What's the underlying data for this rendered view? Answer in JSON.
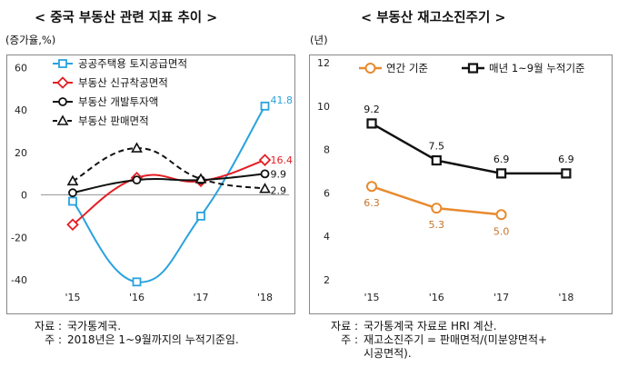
{
  "chart_data": [
    {
      "type": "line",
      "title": "< 중국 부동산 관련 지표 추이 >",
      "ylabel": "(증가율,%)",
      "categories": [
        "'15",
        "'16",
        "'17",
        "'18"
      ],
      "ylim": [
        -50,
        60
      ],
      "yticks": [
        "60",
        "40",
        "20",
        "0",
        "-20",
        "-40"
      ],
      "ytick_values": [
        60,
        40,
        20,
        0,
        -20,
        -40
      ],
      "grid": false,
      "legend_position": "top-left",
      "series": [
        {
          "name": "공공주택용 토지공급면적",
          "values": [
            -3,
            -41,
            -10,
            41.8
          ],
          "color": "#29a3dd",
          "marker": "square",
          "dashed": false,
          "last_label": "41.8"
        },
        {
          "name": "부동산 신규착공면적",
          "values": [
            -14,
            8,
            6.5,
            16.4
          ],
          "color": "#e31e24",
          "marker": "diamond",
          "dashed": false,
          "last_label": "16.4"
        },
        {
          "name": "부동산 개발투자액",
          "values": [
            1,
            7,
            7,
            9.9
          ],
          "color": "#111111",
          "marker": "circle",
          "dashed": false,
          "last_label": "9.9"
        },
        {
          "name": "부동산 판매면적",
          "values": [
            6.5,
            22,
            7.5,
            2.9
          ],
          "color": "#111111",
          "marker": "triangle",
          "dashed": true,
          "last_label": "2.9"
        }
      ]
    },
    {
      "type": "line",
      "title": "< 부동산 재고소진주기 >",
      "ylabel": "(년)",
      "categories": [
        "'15",
        "'16",
        "'17",
        "'18"
      ],
      "ylim": [
        2,
        12
      ],
      "yticks": [
        "12",
        "10",
        "8",
        "6",
        "4",
        "2"
      ],
      "ytick_values": [
        12,
        10,
        8,
        6,
        4,
        2
      ],
      "grid": false,
      "legend_position": "top",
      "series": [
        {
          "name": "연간 기준",
          "values": [
            6.3,
            5.3,
            5.0,
            null
          ],
          "labels": [
            "6.3",
            "5.3",
            "5.0",
            ""
          ],
          "color": "#e88a2e",
          "marker": "circle-open"
        },
        {
          "name": "매년 1~9월 누적기준",
          "values": [
            9.2,
            7.5,
            6.9,
            6.9
          ],
          "labels": [
            "9.2",
            "7.5",
            "6.9",
            "6.9"
          ],
          "color": "#111111",
          "marker": "square-open"
        }
      ]
    }
  ],
  "notes": {
    "left": [
      {
        "k": "자료 :",
        "v": "국가통계국."
      },
      {
        "k": "주 :",
        "v": "2018년은 1~9월까지의 누적기준임."
      }
    ],
    "right": [
      {
        "k": "자료 :",
        "v": "국가통계국 자료로 HRI 계산."
      },
      {
        "k": "주 :",
        "v": "재고소진주기 = 판매면적/(미분양면적+"
      },
      {
        "k": "",
        "v": "시공면적)."
      }
    ]
  }
}
